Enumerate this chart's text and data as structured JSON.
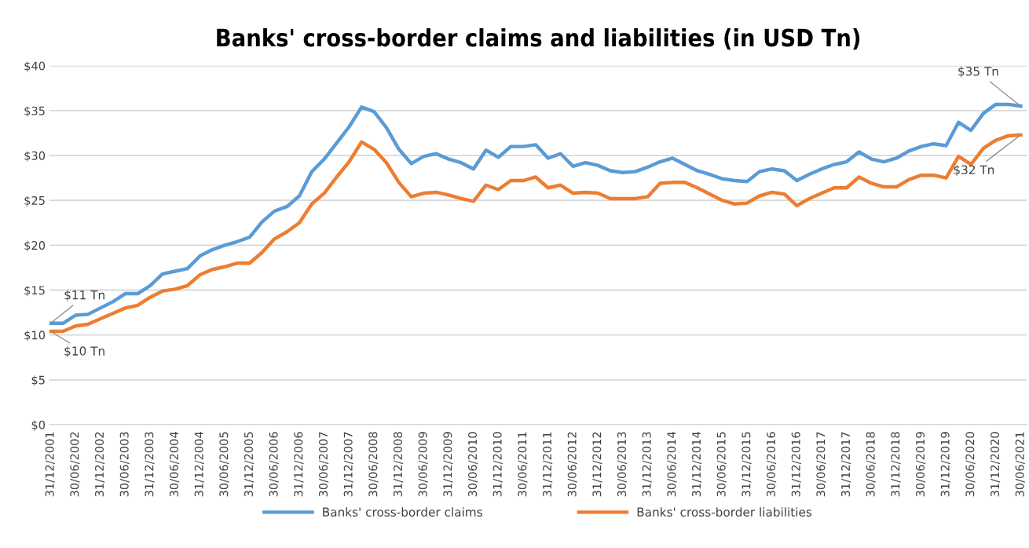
{
  "chart_data": {
    "type": "line",
    "title": "Banks' cross-border claims and liabilities (in USD Tn)",
    "categories": [
      "31/12/2001",
      null,
      "30/06/2002",
      null,
      "31/12/2002",
      null,
      "30/06/2003",
      null,
      "31/12/2003",
      null,
      "30/06/2004",
      null,
      "31/12/2004",
      null,
      "30/06/2005",
      null,
      "31/12/2005",
      null,
      "30/06/2006",
      null,
      "31/12/2006",
      null,
      "30/06/2007",
      null,
      "31/12/2007",
      null,
      "30/06/2008",
      null,
      "31/12/2008",
      null,
      "30/06/2009",
      null,
      "31/12/2009",
      null,
      "30/06/2010",
      null,
      "31/12/2010",
      null,
      "30/06/2011",
      null,
      "31/12/2011",
      null,
      "30/06/2012",
      null,
      "31/12/2012",
      null,
      "30/06/2013",
      null,
      "31/12/2013",
      null,
      "30/06/2014",
      null,
      "31/12/2014",
      null,
      "30/06/2015",
      null,
      "31/12/2015",
      null,
      "30/06/2016",
      null,
      "31/12/2016",
      null,
      "30/06/2017",
      null,
      "31/12/2017",
      null,
      "30/06/2018",
      null,
      "31/12/2018",
      null,
      "30/06/2019",
      null,
      "31/12/2019",
      null,
      "30/06/2020",
      null,
      "31/12/2020",
      null,
      "30/06/2021"
    ],
    "series": [
      {
        "name": "Banks' cross-border claims",
        "color": "#5b9bd5",
        "values": [
          11.3,
          11.3,
          12.2,
          12.3,
          13.0,
          13.7,
          14.6,
          14.6,
          15.5,
          16.8,
          17.1,
          17.4,
          18.8,
          19.5,
          20.0,
          20.4,
          20.9,
          22.6,
          23.8,
          24.3,
          25.5,
          28.2,
          29.6,
          31.4,
          33.2,
          35.4,
          34.9,
          33.1,
          30.7,
          29.1,
          29.9,
          30.2,
          29.6,
          29.2,
          28.5,
          30.6,
          29.8,
          31.0,
          31.0,
          31.2,
          29.7,
          30.2,
          28.8,
          29.2,
          28.9,
          28.3,
          28.1,
          28.2,
          28.7,
          29.3,
          29.7,
          29.0,
          28.3,
          27.9,
          27.4,
          27.2,
          27.1,
          28.2,
          28.5,
          28.3,
          27.2,
          27.9,
          28.5,
          29.0,
          29.3,
          30.4,
          29.6,
          29.3,
          29.7,
          30.5,
          31.0,
          31.3,
          31.1,
          33.7,
          32.8,
          34.7,
          35.7,
          35.7,
          35.5
        ]
      },
      {
        "name": "Banks' cross-border liabilities",
        "color": "#ed7d31",
        "values": [
          10.4,
          10.4,
          11.0,
          11.2,
          11.8,
          12.4,
          13.0,
          13.3,
          14.2,
          14.9,
          15.1,
          15.5,
          16.7,
          17.3,
          17.6,
          18.0,
          18.0,
          19.2,
          20.7,
          21.5,
          22.5,
          24.6,
          25.8,
          27.6,
          29.3,
          31.5,
          30.7,
          29.2,
          27.0,
          25.4,
          25.8,
          25.9,
          25.6,
          25.2,
          24.9,
          26.7,
          26.2,
          27.2,
          27.2,
          27.6,
          26.4,
          26.7,
          25.8,
          25.9,
          25.8,
          25.2,
          25.2,
          25.2,
          25.4,
          26.9,
          27.0,
          27.0,
          26.4,
          25.7,
          25.0,
          24.6,
          24.7,
          25.5,
          25.9,
          25.7,
          24.4,
          25.2,
          25.8,
          26.4,
          26.4,
          27.6,
          26.9,
          26.5,
          26.5,
          27.3,
          27.8,
          27.8,
          27.5,
          29.9,
          29.0,
          30.8,
          31.7,
          32.2,
          32.3
        ]
      }
    ],
    "ylim": [
      0,
      40
    ],
    "yticks": [
      {
        "value": 0,
        "label": "$0"
      },
      {
        "value": 5,
        "label": "$5"
      },
      {
        "value": 10,
        "label": "$10"
      },
      {
        "value": 15,
        "label": "$15"
      },
      {
        "value": 20,
        "label": "$20"
      },
      {
        "value": 25,
        "label": "$25"
      },
      {
        "value": 30,
        "label": "$30"
      },
      {
        "value": 35,
        "label": "$35"
      },
      {
        "value": 40,
        "label": "$40"
      }
    ],
    "grid": "y",
    "legend": "bottom",
    "marker": "none",
    "line_style": "solid",
    "annotations": [
      {
        "text": "$11 Tn",
        "x": "31/12/2001",
        "y": 11.3
      },
      {
        "text": "$10 Tn",
        "x": "31/12/2001",
        "y": 10.4
      },
      {
        "text": "$35 Tn",
        "x": "30/06/2021",
        "y": 35.5
      },
      {
        "text": "$32 Tn",
        "x": "30/06/2021",
        "y": 32.3
      }
    ]
  }
}
